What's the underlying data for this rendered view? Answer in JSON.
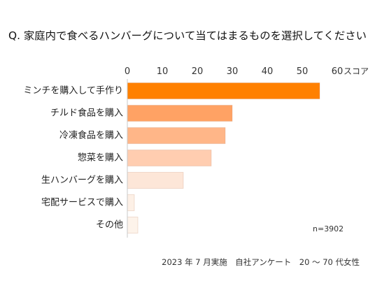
{
  "chart_data": {
    "type": "bar",
    "orientation": "horizontal",
    "title": "Q. 家庭内で食べるハンバーグについて当てはまるものを選択してください",
    "xlabel": "スコア",
    "categories": [
      "ミンチを購入して手作り",
      "チルド食品を購入",
      "冷凍食品を購入",
      "惣菜を購入",
      "生ハンバーグを購入",
      "宅配サービスで購入",
      "その他"
    ],
    "values": [
      55,
      30,
      28,
      24,
      16,
      2,
      3
    ],
    "xlim": [
      0,
      60
    ],
    "xticks": [
      0,
      10,
      20,
      30,
      40,
      50,
      60
    ],
    "value_axis_position": "top",
    "grid": false,
    "legend": "none",
    "annotation": "n=3902",
    "footnote": "2023 年 7 月実施　自社アンケート　20 〜 70 代女性",
    "colors": [
      "#ff8000",
      "#ffa264",
      "#ffb688",
      "#ffcdb0",
      "#fde6d8",
      "#fdf0e6",
      "#fdf3ea"
    ],
    "axis_line_color": "#c8c8c8"
  }
}
